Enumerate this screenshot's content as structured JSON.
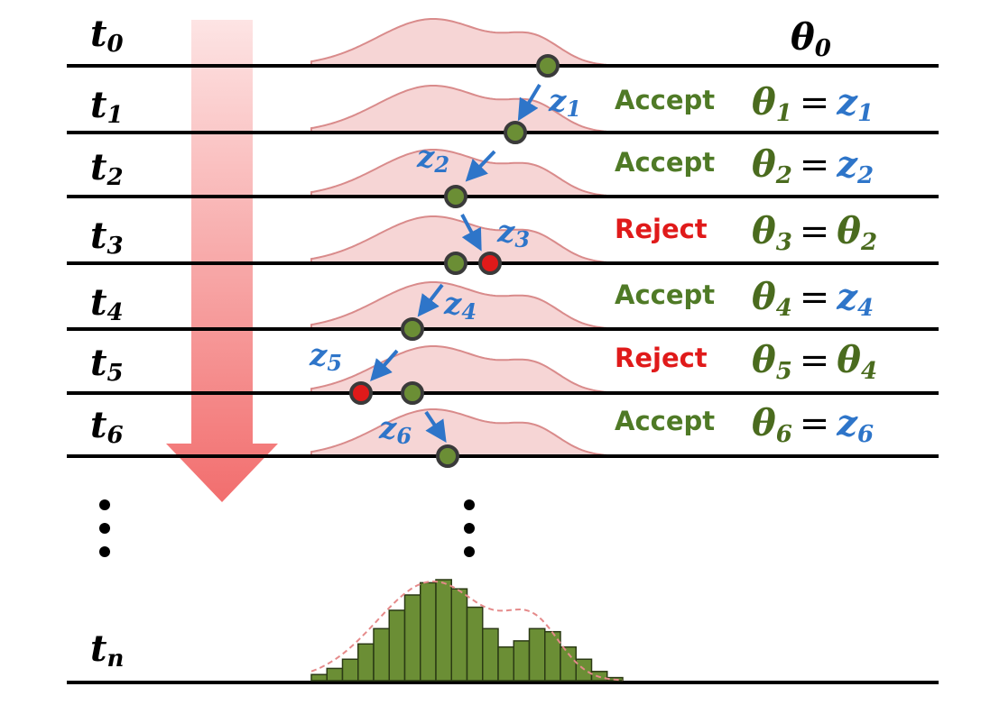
{
  "theta0": {
    "symbol": "θ",
    "sub": "0"
  },
  "rows": [
    {
      "t": "t",
      "t_sub": "0"
    },
    {
      "t": "t",
      "t_sub": "1",
      "decision": "Accept",
      "decision_color": "#4f7a26",
      "lhs": "θ",
      "lhs_sub": "1",
      "op": "=",
      "rhs": "z",
      "rhs_sub": "1",
      "rhs_color": "#2e75c9",
      "z": "z",
      "z_sub": "1"
    },
    {
      "t": "t",
      "t_sub": "2",
      "decision": "Accept",
      "decision_color": "#4f7a26",
      "lhs": "θ",
      "lhs_sub": "2",
      "op": "=",
      "rhs": "z",
      "rhs_sub": "2",
      "rhs_color": "#2e75c9",
      "z": "z",
      "z_sub": "2"
    },
    {
      "t": "t",
      "t_sub": "3",
      "decision": "Reject",
      "decision_color": "#e01a1a",
      "lhs": "θ",
      "lhs_sub": "3",
      "op": "=",
      "rhs": "θ",
      "rhs_sub": "2",
      "rhs_color": "#4a6b1e",
      "z": "z",
      "z_sub": "3"
    },
    {
      "t": "t",
      "t_sub": "4",
      "decision": "Accept",
      "decision_color": "#4f7a26",
      "lhs": "θ",
      "lhs_sub": "4",
      "op": "=",
      "rhs": "z",
      "rhs_sub": "4",
      "rhs_color": "#2e75c9",
      "z": "z",
      "z_sub": "4"
    },
    {
      "t": "t",
      "t_sub": "5",
      "decision": "Reject",
      "decision_color": "#e01a1a",
      "lhs": "θ",
      "lhs_sub": "5",
      "op": "=",
      "rhs": "θ",
      "rhs_sub": "4",
      "rhs_color": "#4a6b1e",
      "z": "z",
      "z_sub": "5"
    },
    {
      "t": "t",
      "t_sub": "6",
      "decision": "Accept",
      "decision_color": "#4f7a26",
      "lhs": "θ",
      "lhs_sub": "6",
      "op": "=",
      "rhs": "z",
      "rhs_sub": "6",
      "rhs_color": "#2e75c9",
      "z": "z",
      "z_sub": "6"
    }
  ],
  "final_row": {
    "t": "t",
    "t_sub": "n"
  },
  "colors": {
    "accept": "#4f7a26",
    "reject": "#e01a1a",
    "proposal": "#2e75c9",
    "sample_fill": "#6b8e35",
    "density_fill": "#f6d5d5",
    "density_stroke": "#d98b8b",
    "arrow": "#f08080"
  },
  "histogram": [
    2,
    4,
    7,
    12,
    17,
    23,
    28,
    32,
    33,
    30,
    24,
    17,
    11,
    13,
    17,
    16,
    11,
    7,
    3,
    1
  ]
}
